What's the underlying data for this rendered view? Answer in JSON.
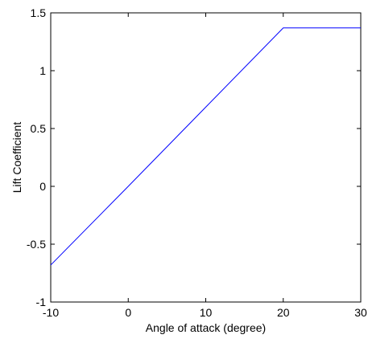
{
  "chart_data": {
    "type": "line",
    "title": "",
    "xlabel": "Angle of attack (degree)",
    "ylabel": "Lift Coefficient",
    "xlim": [
      -10,
      30
    ],
    "ylim": [
      -1,
      1.5
    ],
    "grid": false,
    "x_ticks": [
      -10,
      0,
      10,
      20,
      30
    ],
    "y_ticks": [
      -1,
      -0.5,
      0,
      0.5,
      1,
      1.5
    ],
    "x_tick_labels": [
      "-10",
      "0",
      "10",
      "20",
      "30"
    ],
    "y_tick_labels": [
      "-1",
      "-0.5",
      "0",
      "0.5",
      "1",
      "1.5"
    ],
    "series": [
      {
        "color": "#0000ff",
        "x": [
          -10,
          0,
          20,
          30
        ],
        "y": [
          -0.68,
          0,
          1.37,
          1.37
        ]
      }
    ]
  }
}
